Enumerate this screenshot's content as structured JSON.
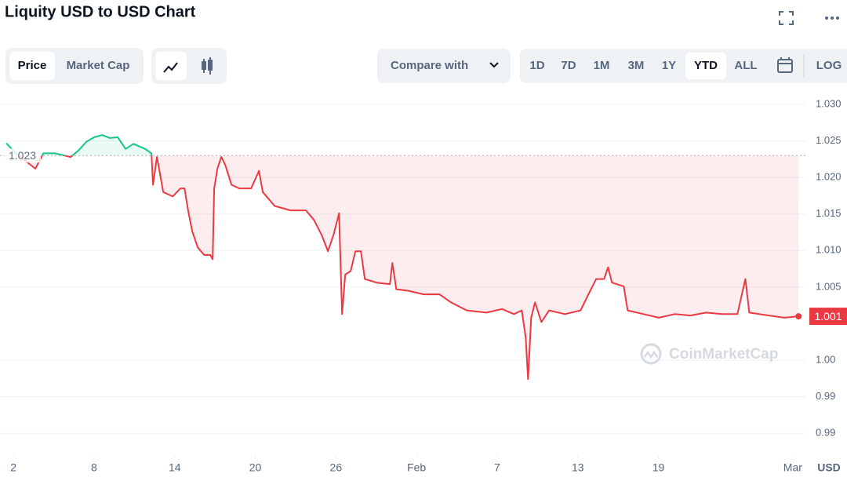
{
  "header": {
    "title": "Liquity USD to USD Chart"
  },
  "controls": {
    "tabs": [
      "Price",
      "Market Cap"
    ],
    "compare": "Compare with",
    "ranges": [
      "1D",
      "7D",
      "1M",
      "3M",
      "1Y",
      "YTD",
      "ALL"
    ],
    "log": "LOG"
  },
  "watermark": "CoinMarketCap",
  "chart_data": {
    "type": "line",
    "y_unit": "USD",
    "baseline": 1.023,
    "colors": {
      "above": "#16c784",
      "below": "#ea3943"
    },
    "grid": true,
    "xlim": [
      1.0,
      61.0
    ],
    "xticks": [
      2,
      8,
      14,
      20,
      26,
      {
        "value": 32,
        "label": "Feb"
      },
      {
        "value": 38,
        "label": "7"
      },
      {
        "value": 44,
        "label": "13"
      },
      {
        "value": 50,
        "label": "19"
      },
      {
        "value": 60,
        "label": "Mar"
      }
    ],
    "ylim": [
      0.982,
      1.0314
    ],
    "yticks": [
      {
        "value": 1.03,
        "label": "1.030"
      },
      1.025,
      {
        "value": 1.02,
        "label": "1.020"
      },
      1.015,
      {
        "value": 1.01,
        "label": "1.010"
      },
      1.005,
      {
        "value": 0.995,
        "label": "1.00"
      },
      {
        "value": 0.99,
        "label": "0.99"
      },
      {
        "value": 0.985,
        "label": "0.99"
      }
    ],
    "x": [
      1.47,
      2.18,
      3.63,
      4.22,
      5.09,
      6.26,
      6.85,
      7.43,
      8.01,
      8.6,
      9.18,
      9.76,
      10.35,
      10.93,
      11.81,
      12.27,
      12.39,
      12.68,
      13.15,
      13.85,
      14.43,
      14.73,
      15.02,
      15.31,
      15.72,
      16.19,
      16.65,
      16.83,
      16.94,
      17.18,
      17.47,
      17.76,
      18.23,
      18.81,
      19.69,
      20.27,
      20.56,
      21.44,
      22.61,
      23.77,
      24.36,
      24.94,
      25.41,
      25.82,
      26.23,
      26.46,
      26.69,
      27.1,
      27.45,
      27.86,
      28.15,
      29.03,
      30.02,
      30.2,
      30.49,
      31.36,
      32.53,
      33.7,
      34.57,
      35.74,
      37.2,
      38.37,
      39.24,
      39.83,
      40.12,
      40.3,
      40.53,
      40.82,
      41.29,
      41.87,
      43.04,
      44.21,
      44.79,
      45.37,
      45.96,
      46.25,
      46.54,
      47.42,
      47.71,
      48.88,
      50.04,
      51.21,
      52.38,
      53.55,
      54.71,
      55.88,
      56.47,
      56.76,
      58.22,
      59.38,
      60.43
    ],
    "series": [
      {
        "values": [
          1.0247,
          1.0233,
          1.0212,
          1.0233,
          1.0233,
          1.0228,
          1.0237,
          1.0249,
          1.0255,
          1.0258,
          1.0254,
          1.0255,
          1.0239,
          1.0246,
          1.0239,
          1.0233,
          1.019,
          1.0228,
          1.018,
          1.0174,
          1.0185,
          1.0185,
          1.0153,
          1.0126,
          1.0104,
          1.0094,
          1.0094,
          1.0088,
          1.0185,
          1.0212,
          1.0228,
          1.0217,
          1.019,
          1.0185,
          1.0185,
          1.0209,
          1.018,
          1.0161,
          1.0155,
          1.0155,
          1.0142,
          1.0121,
          1.0099,
          1.0121,
          1.0151,
          1.0013,
          1.0067,
          1.0072,
          1.0099,
          1.0099,
          1.0061,
          1.0056,
          1.0054,
          1.0083,
          1.0047,
          1.0045,
          1.004,
          1.004,
          1.0029,
          1.0018,
          1.0015,
          1.002,
          1.0013,
          1.0018,
          0.9981,
          0.9924,
          1.0008,
          1.0029,
          1.0002,
          1.0018,
          1.0013,
          1.0018,
          1.004,
          1.0061,
          1.0061,
          1.0077,
          1.0056,
          1.0051,
          1.0018,
          1.0013,
          1.0008,
          1.0013,
          1.0011,
          1.0015,
          1.0013,
          1.0013,
          1.0061,
          1.0015,
          1.0011,
          1.0008,
          1.001
        ]
      }
    ]
  }
}
